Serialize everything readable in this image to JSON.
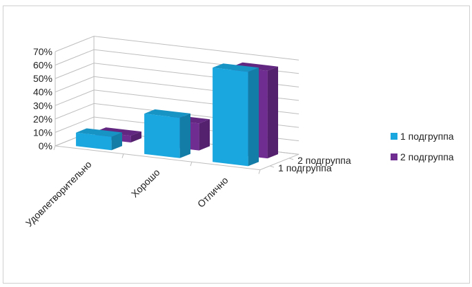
{
  "chart_data": {
    "type": "bar",
    "subtype": "3d-column",
    "title": "",
    "categories": [
      "Удовлетворительно",
      "Хорошо",
      "Отлично"
    ],
    "series": [
      {
        "name": "1 подгруппа",
        "values": [
          10,
          30,
          70
        ],
        "color": "#1aa7df"
      },
      {
        "name": "2 подгруппа",
        "values": [
          5,
          20,
          65
        ],
        "color": "#6f2c91"
      }
    ],
    "depth_axis_labels": [
      "2 подгруппа",
      "1 подгруппа"
    ],
    "ylim": [
      0,
      70
    ],
    "y_ticks": [
      "0%",
      "10%",
      "20%",
      "30%",
      "40%",
      "50%",
      "60%",
      "70%"
    ],
    "legend_position": "right",
    "grid": true
  }
}
